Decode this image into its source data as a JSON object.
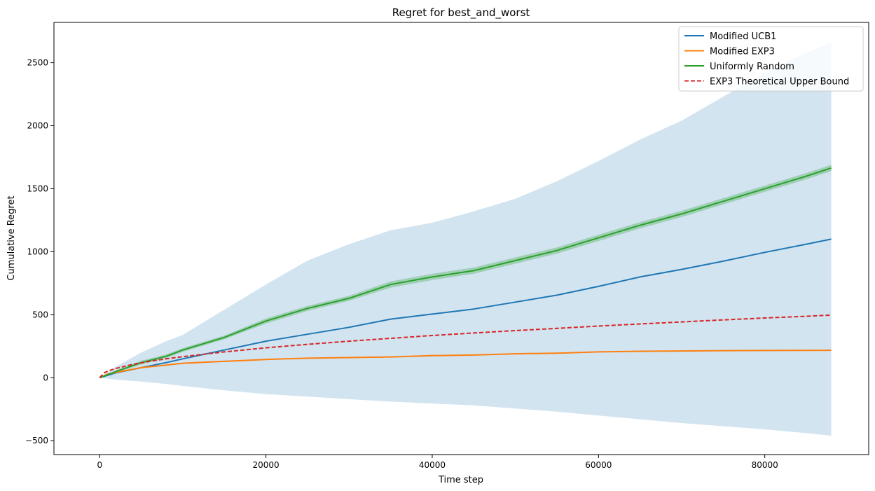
{
  "chart_data": {
    "type": "line",
    "title": "Regret for best_and_worst",
    "xlabel": "Time step",
    "ylabel": "Cumulative Regret",
    "xlim": [
      -5500,
      92500
    ],
    "ylim": [
      -610,
      2820
    ],
    "xticks": [
      0,
      20000,
      40000,
      60000,
      80000
    ],
    "yticks": [
      -500,
      0,
      500,
      1000,
      1500,
      2000,
      2500
    ],
    "grid": false,
    "legend_position": "top-right",
    "series": [
      {
        "name": "Modified UCB1",
        "color": "#1f77b4",
        "style": "solid",
        "x": [
          0,
          2000,
          5000,
          8000,
          10000,
          15000,
          20000,
          25000,
          30000,
          35000,
          40000,
          45000,
          50000,
          55000,
          60000,
          65000,
          70000,
          75000,
          80000,
          85000,
          88000
        ],
        "y": [
          0,
          40,
          80,
          120,
          150,
          220,
          290,
          345,
          400,
          465,
          505,
          545,
          600,
          655,
          725,
          800,
          860,
          925,
          995,
          1060,
          1100
        ],
        "band_lower": [
          0,
          -15,
          -30,
          -50,
          -65,
          -100,
          -130,
          -150,
          -170,
          -190,
          -205,
          -220,
          -245,
          -270,
          -300,
          -330,
          -360,
          -385,
          -410,
          -440,
          -460
        ],
        "band_upper": [
          0,
          90,
          200,
          290,
          340,
          540,
          740,
          930,
          1060,
          1170,
          1230,
          1320,
          1420,
          1560,
          1720,
          1890,
          2040,
          2230,
          2420,
          2580,
          2660
        ],
        "band_color": "#1f77b4"
      },
      {
        "name": "Modified EXP3",
        "color": "#ff7f0e",
        "style": "solid",
        "x": [
          0,
          1000,
          3000,
          5000,
          8000,
          10000,
          15000,
          20000,
          25000,
          30000,
          35000,
          40000,
          45000,
          50000,
          55000,
          60000,
          65000,
          70000,
          75000,
          80000,
          85000,
          88000
        ],
        "y": [
          0,
          30,
          55,
          80,
          100,
          115,
          130,
          145,
          155,
          160,
          165,
          175,
          180,
          190,
          195,
          205,
          210,
          212,
          215,
          216,
          217,
          218
        ]
      },
      {
        "name": "Uniformly Random",
        "color": "#2ca02c",
        "style": "solid",
        "x": [
          0,
          2000,
          5000,
          8000,
          10000,
          15000,
          20000,
          25000,
          30000,
          35000,
          40000,
          45000,
          50000,
          55000,
          60000,
          65000,
          70000,
          75000,
          80000,
          85000,
          88000
        ],
        "y": [
          0,
          50,
          120,
          170,
          220,
          320,
          450,
          550,
          630,
          740,
          800,
          850,
          930,
          1010,
          1110,
          1210,
          1300,
          1400,
          1500,
          1600,
          1665
        ],
        "band_lower": [
          0,
          40,
          105,
          155,
          205,
          305,
          430,
          530,
          610,
          715,
          775,
          825,
          905,
          985,
          1085,
          1185,
          1275,
          1375,
          1475,
          1575,
          1640
        ],
        "band_upper": [
          0,
          60,
          135,
          185,
          235,
          335,
          470,
          570,
          650,
          765,
          825,
          875,
          955,
          1035,
          1135,
          1235,
          1325,
          1425,
          1525,
          1625,
          1690
        ],
        "band_color": "#2ca02c"
      },
      {
        "name": "EXP3 Theoretical Upper Bound",
        "color": "#d62728",
        "style": "dashed",
        "x": [
          0,
          500,
          1000,
          2000,
          4000,
          6000,
          8000,
          10000,
          15000,
          20000,
          25000,
          30000,
          35000,
          40000,
          45000,
          50000,
          55000,
          60000,
          65000,
          70000,
          75000,
          80000,
          85000,
          88000
        ],
        "y": [
          0,
          37,
          53,
          75,
          106,
          130,
          150,
          167,
          205,
          237,
          265,
          290,
          313,
          335,
          355,
          374,
          392,
          410,
          427,
          443,
          459,
          474,
          488,
          497
        ]
      }
    ]
  }
}
